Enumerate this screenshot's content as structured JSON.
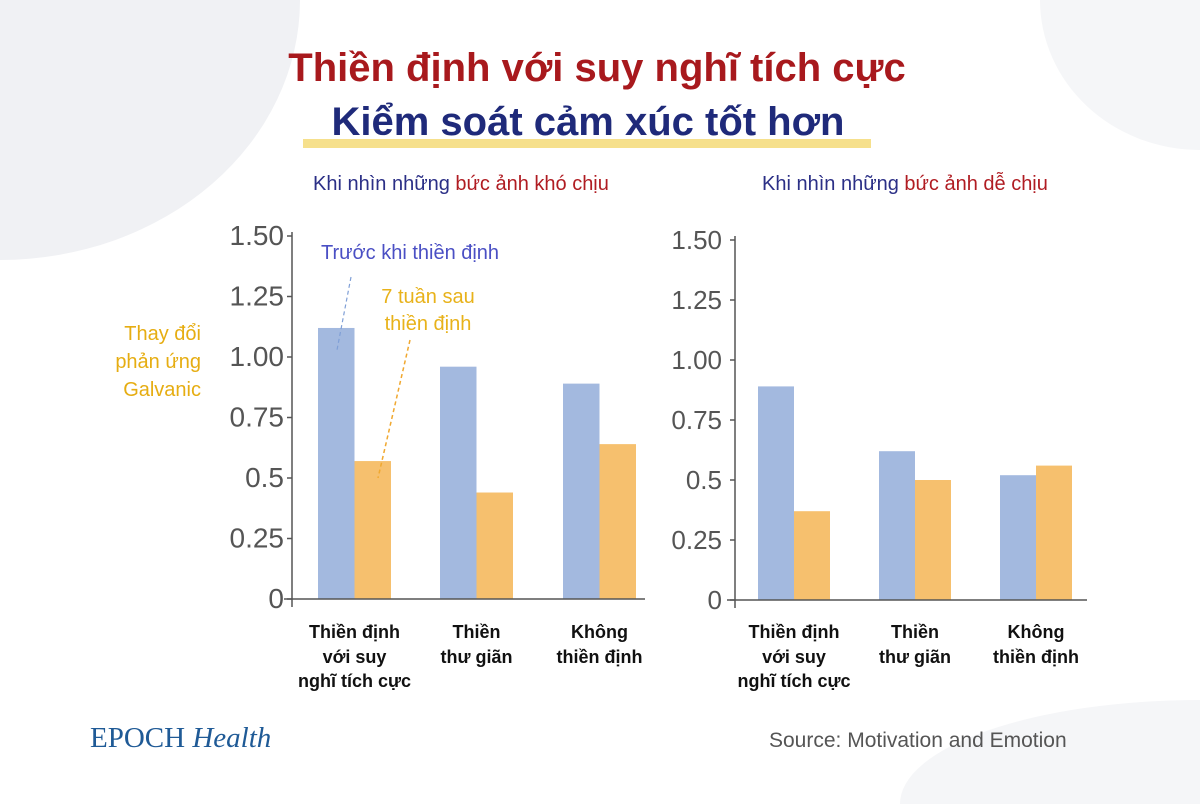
{
  "title": "Thiền định với suy nghĩ tích cực",
  "subtitle": "Kiểm soát cảm xúc tốt hơn",
  "logo": {
    "brand": "EPOCH",
    "section": "Health"
  },
  "source": "Source: Motivation and Emotion",
  "colors": {
    "before": "#a3b9df",
    "after": "#f6c06e",
    "title": "#a8191d",
    "subtitle": "#1f2a7a",
    "highlight": "#f6e08c"
  },
  "chart_data": [
    {
      "type": "bar",
      "title_parts": [
        "Khi nhìn những ",
        "bức ảnh khó chịu"
      ],
      "ylabel_lines": [
        "Thay đổi",
        "phản ứng",
        "Galvanic"
      ],
      "ylim": [
        0,
        1.5
      ],
      "yticks": [
        "0",
        "0.25",
        "0.5",
        "0.75",
        "1.00",
        "1.25",
        "1.50"
      ],
      "categories": [
        [
          "Thiền định",
          "với suy",
          "nghĩ tích cực"
        ],
        [
          "Thiền",
          "thư giãn"
        ],
        [
          "Không",
          "thiền định"
        ]
      ],
      "series": [
        {
          "name": "Trước khi thiền định",
          "values": [
            1.12,
            0.96,
            0.89
          ]
        },
        {
          "name": "7 tuần sau thiền định",
          "name_lines": [
            "7 tuần sau",
            "thiền định"
          ],
          "values": [
            0.57,
            0.44,
            0.64
          ]
        }
      ],
      "grid": false,
      "legend": "annotations inside plot"
    },
    {
      "type": "bar",
      "title_parts": [
        "Khi nhìn những ",
        "bức ảnh dễ chịu"
      ],
      "ylim": [
        0,
        1.5
      ],
      "yticks": [
        "0",
        "0.25",
        "0.5",
        "0.75",
        "1.00",
        "1.25",
        "1.50"
      ],
      "categories": [
        [
          "Thiền định",
          "với suy",
          "nghĩ tích cực"
        ],
        [
          "Thiền",
          "thư giãn"
        ],
        [
          "Không",
          "thiền định"
        ]
      ],
      "series": [
        {
          "name": "Trước khi thiền định",
          "values": [
            0.89,
            0.62,
            0.52
          ]
        },
        {
          "name": "7 tuần sau thiền định",
          "values": [
            0.37,
            0.5,
            0.56
          ]
        }
      ],
      "grid": false
    }
  ]
}
